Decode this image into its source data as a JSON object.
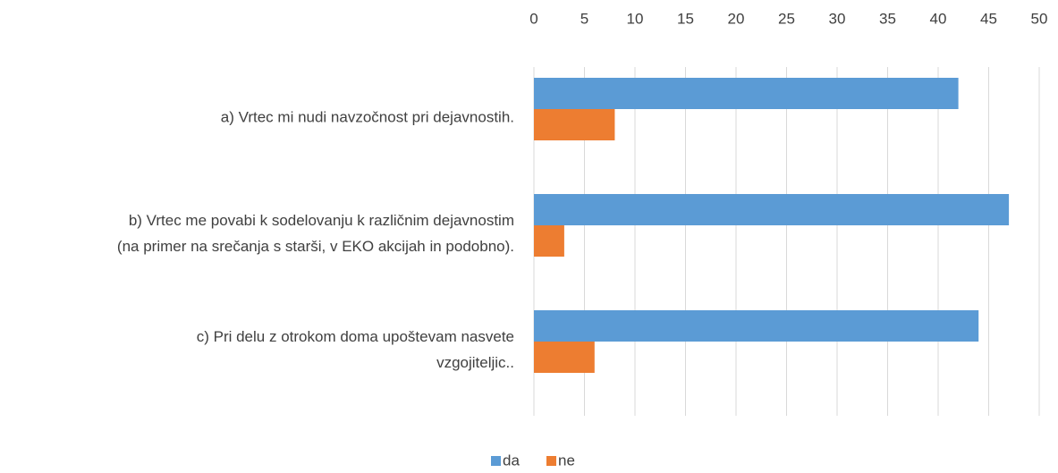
{
  "chart_data": {
    "type": "bar",
    "orientation": "horizontal",
    "categories": [
      [
        "a) Vrtec mi nudi navzočnost pri dejavnostih."
      ],
      [
        "b) Vrtec me povabi k sodelovanju k različnim dejavnostim",
        "(na primer na srečanja s starši, v EKO akcijah in podobno)."
      ],
      [
        "c) Pri delu z otrokom doma upoštevam nasvete",
        "vzgojiteljic.."
      ]
    ],
    "series": [
      {
        "name": "da",
        "color": "#5b9bd5",
        "values": [
          42,
          47,
          44
        ]
      },
      {
        "name": "ne",
        "color": "#ed7d31",
        "values": [
          8,
          3,
          6
        ]
      }
    ],
    "xlim": [
      0,
      50
    ],
    "xticks": [
      0,
      5,
      10,
      15,
      20,
      25,
      30,
      35,
      40,
      45,
      50
    ],
    "grid": true,
    "legend": "bottom"
  }
}
